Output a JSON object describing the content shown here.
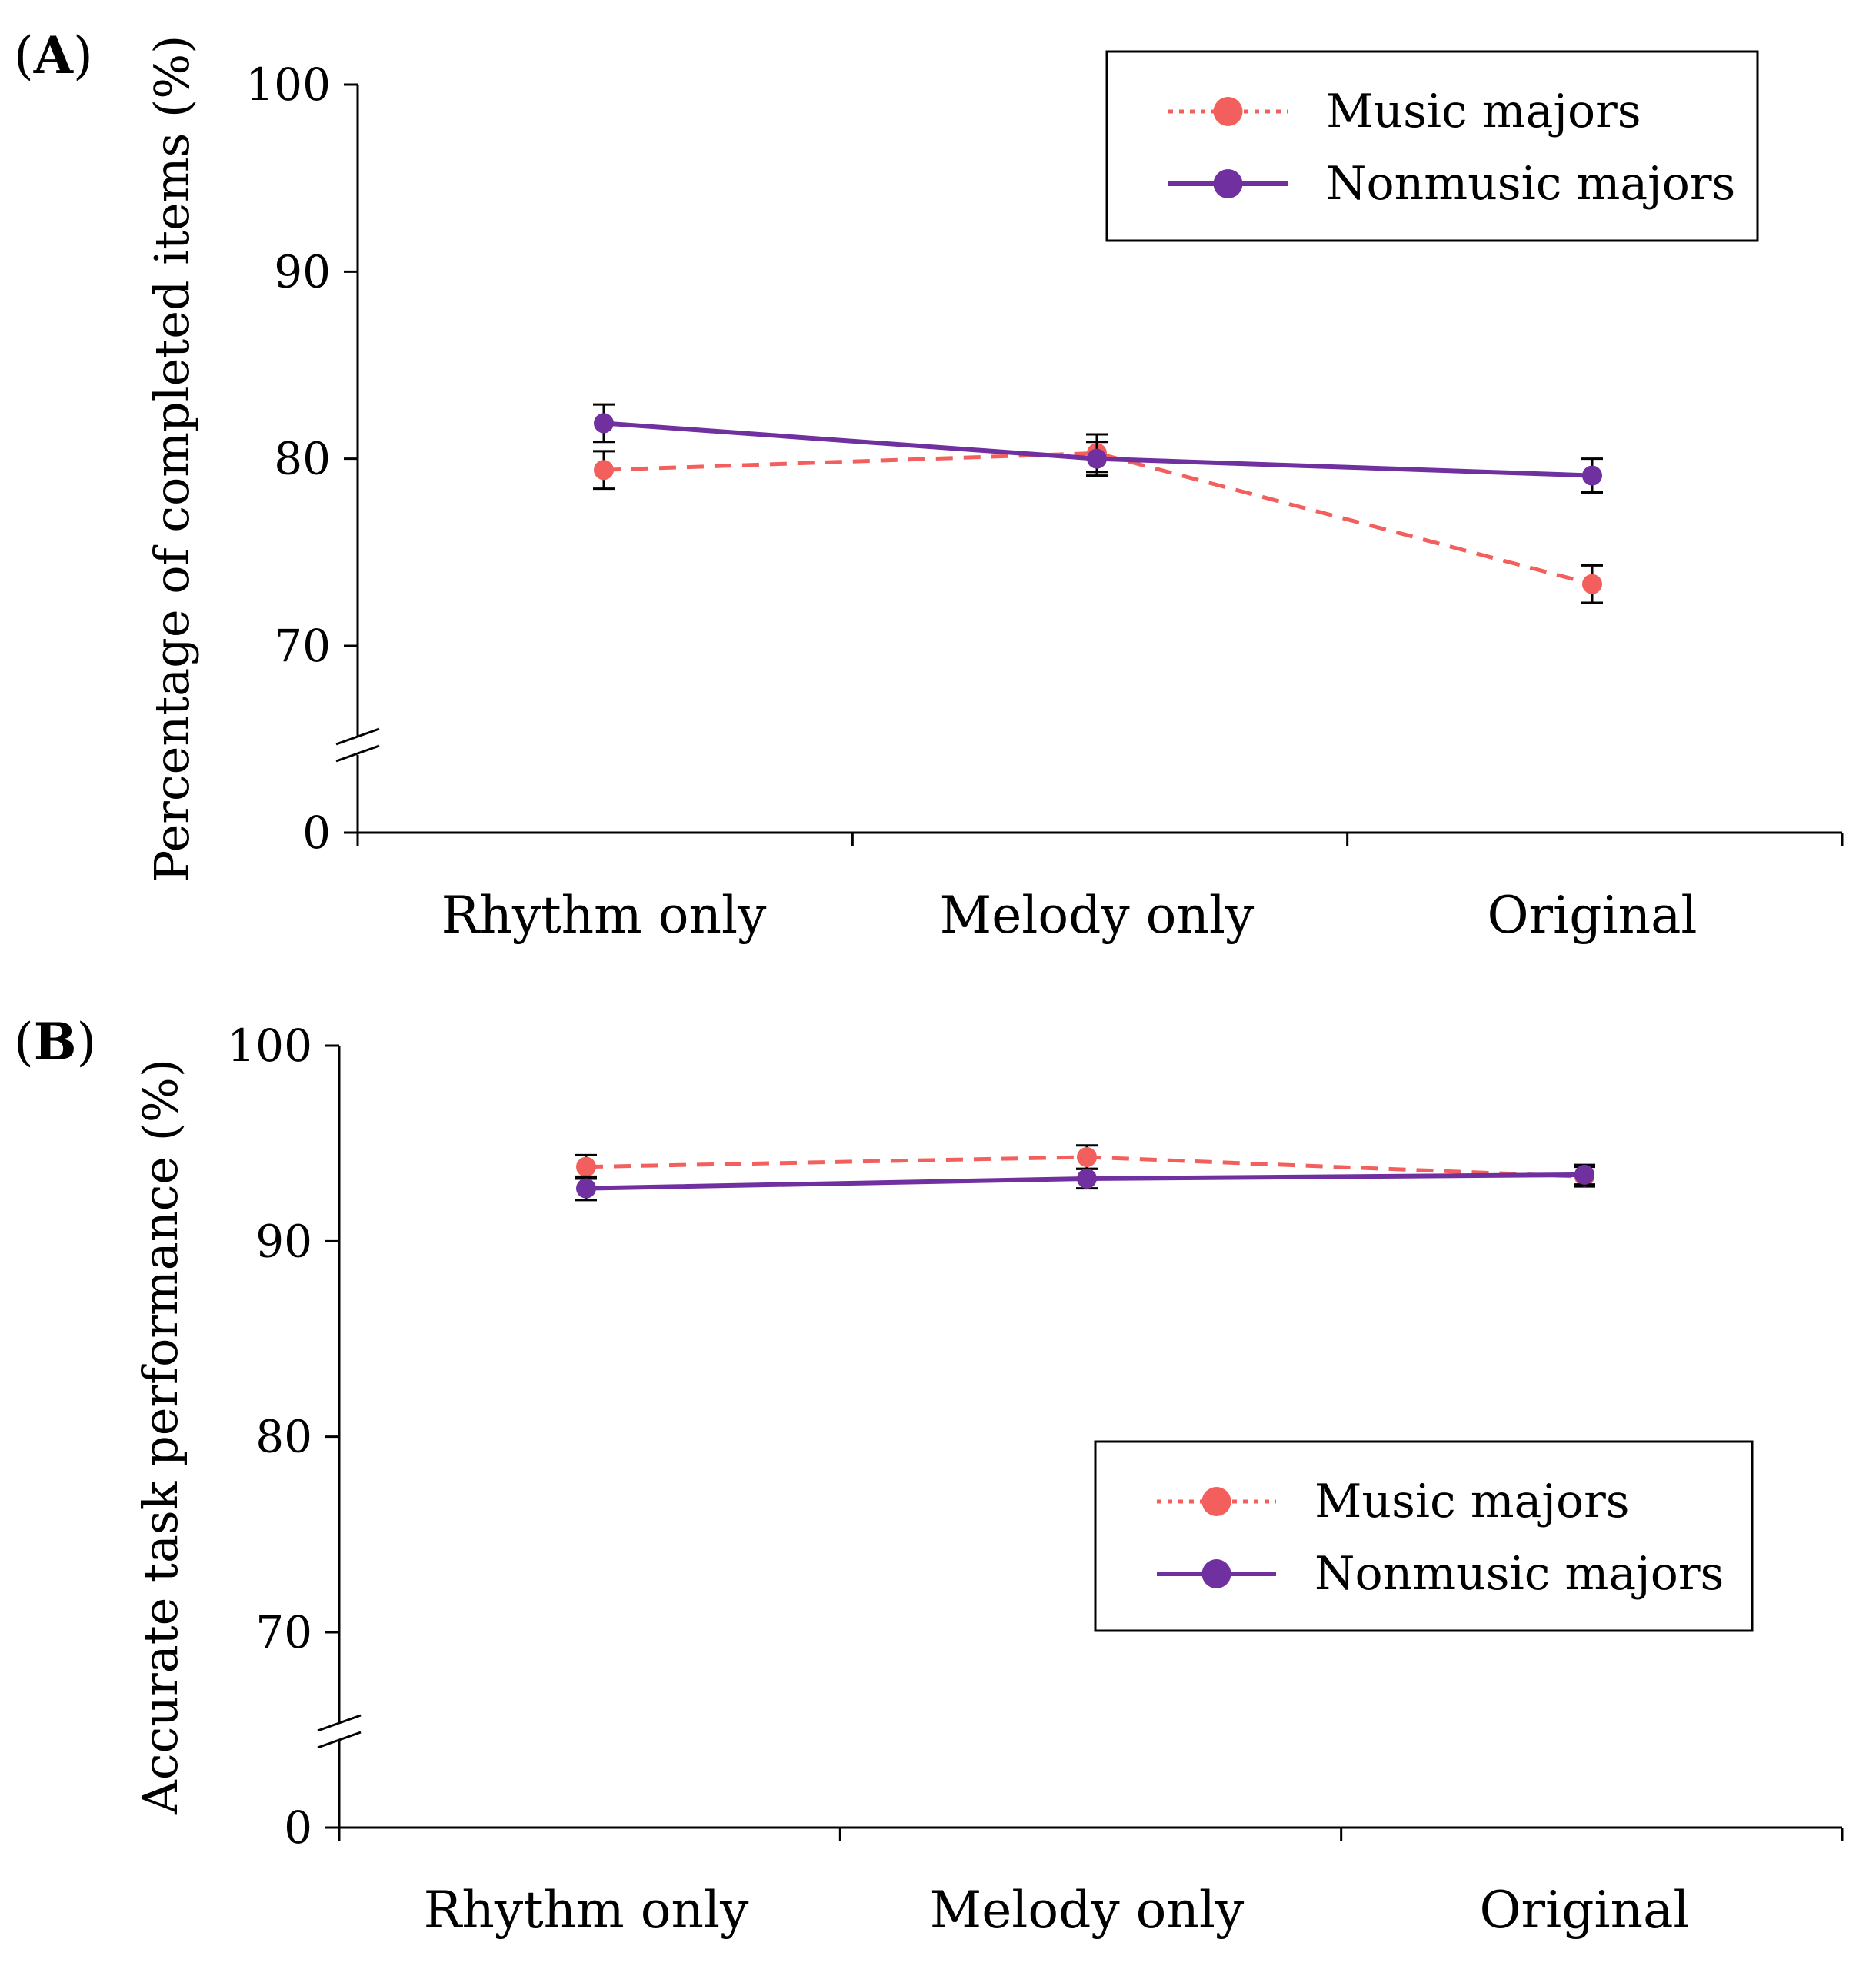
{
  "chart_data": [
    {
      "type": "line",
      "panel_label": "A",
      "ylabel": "Percentage of completed items (%)",
      "categories": [
        "Rhythm only",
        "Melody only",
        "Original"
      ],
      "yticks": [
        "0",
        "70",
        "80",
        "90",
        "100"
      ],
      "axis_break": true,
      "ylim": [
        65,
        100
      ],
      "series": [
        {
          "name": "Music majors",
          "values": [
            79.4,
            80.3,
            73.3
          ],
          "errors": [
            1.0,
            1.0,
            1.0
          ],
          "color": "#f25f5c",
          "line_style": "dashed"
        },
        {
          "name": "Nonmusic majors",
          "values": [
            81.9,
            80.0,
            79.1
          ],
          "errors": [
            1.0,
            0.9,
            0.9
          ],
          "color": "#7030a0",
          "line_style": "solid"
        }
      ],
      "legend": {
        "position": "top-right",
        "entries": [
          "Music majors",
          "Nonmusic majors"
        ]
      }
    },
    {
      "type": "line",
      "panel_label": "B",
      "ylabel": "Accurate task performance (%)",
      "categories": [
        "Rhythm only",
        "Melody only",
        "Original"
      ],
      "yticks": [
        "0",
        "70",
        "80",
        "90",
        "100"
      ],
      "axis_break": true,
      "ylim": [
        65,
        100
      ],
      "series": [
        {
          "name": "Music majors",
          "values": [
            93.8,
            94.3,
            93.3
          ],
          "errors": [
            0.6,
            0.6,
            0.5
          ],
          "color": "#f25f5c",
          "line_style": "dashed"
        },
        {
          "name": "Nonmusic majors",
          "values": [
            92.7,
            93.2,
            93.4
          ],
          "errors": [
            0.6,
            0.5,
            0.5
          ],
          "color": "#7030a0",
          "line_style": "solid"
        }
      ],
      "legend": {
        "position": "center-right",
        "entries": [
          "Music majors",
          "Nonmusic majors"
        ]
      }
    }
  ]
}
